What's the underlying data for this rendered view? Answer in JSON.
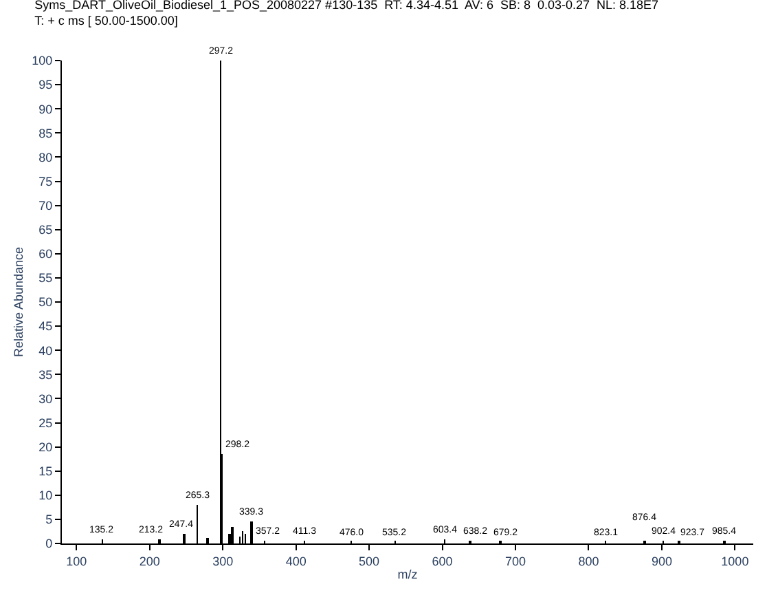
{
  "chart_data": {
    "type": "bar",
    "title": "Syms_DART_OliveOil_Biodiesel_1_POS_20080227 #130-135  RT: 4.34-4.51  AV: 6  SB: 8  0.03-0.27  NL: 8.18E7",
    "subtitle": "T: + c ms [ 50.00-1500.00]",
    "xlabel": "m/z",
    "ylabel": "Relative Abundance",
    "x": [
      135.2,
      213.2,
      247.4,
      265.3,
      279.2,
      297.2,
      298.2,
      309.2,
      313.2,
      323.2,
      327.2,
      331.2,
      339.3,
      357.2,
      411.3,
      476.0,
      535.2,
      603.4,
      638.2,
      679.2,
      823.1,
      876.4,
      902.4,
      923.7,
      985.4
    ],
    "series": [
      {
        "color": "#000000",
        "values": [
          0.8,
          0.8,
          2,
          8,
          1,
          100,
          18.5,
          2,
          3.5,
          1.5,
          2.5,
          2,
          4.5,
          0.6,
          0.5,
          0.4,
          0.4,
          0.8,
          0.5,
          0.4,
          0.4,
          0.4,
          0.6,
          0.4,
          0.5
        ]
      }
    ],
    "annotations": [
      {
        "text": "135.2",
        "x": 135.2,
        "y": 0.8
      },
      {
        "text": "213.2",
        "x": 213.2,
        "y": 0.8
      },
      {
        "text": "247.4",
        "x": 247.4,
        "y": 2
      },
      {
        "text": "265.3",
        "x": 265.3,
        "y": 8
      },
      {
        "text": "297.2",
        "x": 297.2,
        "y": 100
      },
      {
        "text": "298.2",
        "x": 298.2,
        "y": 18.5
      },
      {
        "text": "339.3",
        "x": 339.3,
        "y": 4.5
      },
      {
        "text": "357.2",
        "x": 357.2,
        "y": 0.6
      },
      {
        "text": "411.3",
        "x": 411.3,
        "y": 0.5
      },
      {
        "text": "476.0",
        "x": 476.0,
        "y": 0.4
      },
      {
        "text": "535.2",
        "x": 535.2,
        "y": 0.4
      },
      {
        "text": "603.4",
        "x": 603.4,
        "y": 0.8
      },
      {
        "text": "638.2",
        "x": 638.2,
        "y": 0.5
      },
      {
        "text": "679.2",
        "x": 679.2,
        "y": 0.4
      },
      {
        "text": "823.1",
        "x": 823.1,
        "y": 0.4
      },
      {
        "text": "876.4",
        "x": 876.4,
        "y": 0.4
      },
      {
        "text": "902.4",
        "x": 902.4,
        "y": 0.6
      },
      {
        "text": "923.7",
        "x": 923.7,
        "y": 0.4
      },
      {
        "text": "985.4",
        "x": 985.4,
        "y": 0.5
      }
    ],
    "xlim": [
      80,
      1025
    ],
    "xticks": [
      100,
      200,
      300,
      400,
      500,
      600,
      700,
      800,
      900,
      1000
    ],
    "ylim": [
      0,
      100
    ],
    "yticks": [
      0,
      5,
      10,
      15,
      20,
      25,
      30,
      35,
      40,
      45,
      50,
      55,
      60,
      65,
      70,
      75,
      80,
      85,
      90,
      95,
      100
    ],
    "tick_labels": true
  }
}
